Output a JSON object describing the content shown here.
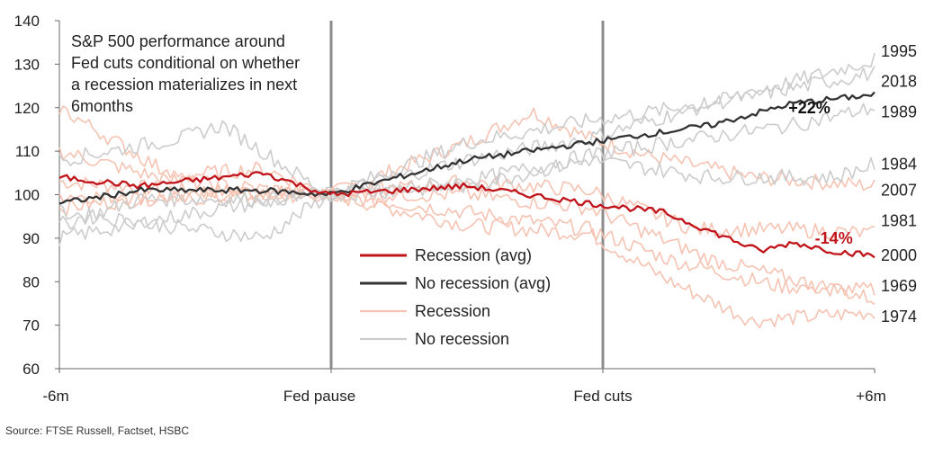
{
  "chart_data": {
    "type": "line",
    "note": [
      "S&P 500 performance around",
      "Fed cuts conditional on whether",
      "a recession materializes in next",
      "6months"
    ],
    "ylim": [
      60,
      140
    ],
    "y_ticks": [
      60,
      70,
      80,
      90,
      100,
      110,
      120,
      130,
      140
    ],
    "x_ticks": [
      "-6m",
      "Fed pause",
      "Fed cuts",
      "+6m"
    ],
    "vertical_markers": [
      "Fed pause",
      "Fed cuts"
    ],
    "grid": false,
    "legend_position": "center",
    "legend": [
      {
        "label": "Recession (avg)",
        "color": "#c0141a"
      },
      {
        "label": "No recession (avg)",
        "color": "#333333"
      },
      {
        "label": "Recession",
        "color": "#f6c3b2"
      },
      {
        "label": "No recession",
        "color": "#cccccc"
      }
    ],
    "colors": {
      "recession_avg": "#c0141a",
      "no_recession_avg": "#333333",
      "recession": "#f6c3b2",
      "no_recession": "#cccccc",
      "marker": "#8c8c8c"
    },
    "series": [
      {
        "name": "Recession (avg)",
        "kind": "avg_recession",
        "x": [
          0,
          0.1,
          0.25,
          0.33,
          0.5,
          0.65,
          0.74,
          0.86,
          0.9,
          0.95,
          1.0
        ],
        "values": [
          104,
          102,
          105,
          100,
          102,
          98,
          96,
          87,
          89,
          87,
          86
        ]
      },
      {
        "name": "No recession (avg)",
        "kind": "avg_norecession",
        "x": [
          0,
          0.1,
          0.25,
          0.33,
          0.5,
          0.65,
          0.8,
          0.9,
          1.0
        ],
        "values": [
          98,
          101,
          101,
          100,
          108,
          112,
          116,
          121,
          123
        ]
      },
      {
        "kind": "recession",
        "x": [
          0,
          0.15,
          0.33,
          0.5,
          0.58,
          0.65,
          0.72,
          0.85,
          1.0
        ],
        "values": [
          103,
          101,
          100,
          112,
          119,
          113,
          109,
          104,
          102
        ]
      },
      {
        "kind": "recession",
        "x": [
          0,
          0.15,
          0.33,
          0.5,
          0.65,
          0.75,
          0.85,
          1.0
        ],
        "values": [
          100,
          99,
          100,
          93,
          91,
          80,
          71,
          73
        ]
      },
      {
        "kind": "recession",
        "x": [
          0,
          0.15,
          0.33,
          0.5,
          0.65,
          0.75,
          0.88,
          1.0
        ],
        "values": [
          97,
          100,
          100,
          96,
          92,
          85,
          79,
          78
        ]
      },
      {
        "kind": "recession",
        "x": [
          0,
          0.12,
          0.25,
          0.33,
          0.5,
          0.65,
          0.78,
          0.9,
          1.0
        ],
        "values": [
          110,
          104,
          106,
          100,
          103,
          101,
          92,
          92,
          91
        ]
      },
      {
        "kind": "recession",
        "x": [
          0,
          0.15,
          0.33,
          0.5,
          0.65,
          0.8,
          1.0
        ],
        "values": [
          120,
          103,
          100,
          100,
          97,
          85,
          76
        ]
      },
      {
        "kind": "norecession",
        "x": [
          0,
          0.15,
          0.2,
          0.33,
          0.5,
          0.65,
          0.8,
          1.0
        ],
        "values": [
          108,
          113,
          116,
          100,
          112,
          117,
          121,
          131
        ]
      },
      {
        "kind": "norecession",
        "x": [
          0,
          0.1,
          0.25,
          0.33,
          0.5,
          0.65,
          0.8,
          1.0
        ],
        "values": [
          93,
          99,
          99,
          100,
          108,
          113,
          121,
          128
        ]
      },
      {
        "kind": "norecession",
        "x": [
          0,
          0.2,
          0.33,
          0.5,
          0.65,
          0.8,
          0.95,
          1.0
        ],
        "values": [
          90,
          97,
          100,
          102,
          108,
          104,
          104,
          107
        ]
      },
      {
        "kind": "norecession",
        "x": [
          0,
          0.25,
          0.33,
          0.5,
          0.65,
          0.75,
          0.9,
          1.0
        ],
        "values": [
          96,
          90,
          100,
          103,
          109,
          112,
          116,
          120
        ]
      }
    ],
    "annotations": [
      {
        "text": "+22%",
        "x": 0.92,
        "y": 120,
        "color": "#111111"
      },
      {
        "text": "-14%",
        "x": 0.95,
        "y": 90,
        "color": "#c0141a"
      }
    ],
    "right_labels": [
      {
        "text": "1995",
        "y": 133
      },
      {
        "text": "2018",
        "y": 126
      },
      {
        "text": "1989",
        "y": 119
      },
      {
        "text": "1984",
        "y": 107
      },
      {
        "text": "2007",
        "y": 101
      },
      {
        "text": "1981",
        "y": 94
      },
      {
        "text": "2000",
        "y": 86
      },
      {
        "text": "1969",
        "y": 79
      },
      {
        "text": "1974",
        "y": 72
      }
    ]
  },
  "source": "Source: FTSE Russell, Factset, HSBC"
}
